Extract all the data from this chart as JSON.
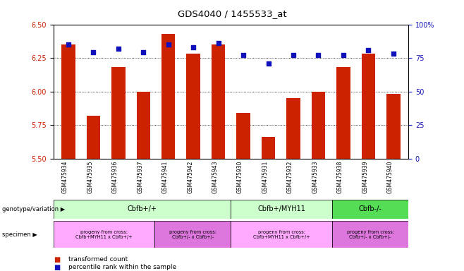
{
  "title": "GDS4040 / 1455533_at",
  "samples": [
    "GSM475934",
    "GSM475935",
    "GSM475936",
    "GSM475937",
    "GSM475941",
    "GSM475942",
    "GSM475943",
    "GSM475930",
    "GSM475931",
    "GSM475932",
    "GSM475933",
    "GSM475938",
    "GSM475939",
    "GSM475940"
  ],
  "transformed_count": [
    6.35,
    5.82,
    6.18,
    6.0,
    6.43,
    6.28,
    6.35,
    5.84,
    5.66,
    5.95,
    6.0,
    6.18,
    6.28,
    5.98
  ],
  "percentile_rank": [
    85,
    79,
    82,
    79,
    85,
    83,
    86,
    77,
    71,
    77,
    77,
    77,
    81,
    78
  ],
  "ylim_left": [
    5.5,
    6.5
  ],
  "ylim_right": [
    0,
    100
  ],
  "yticks_left": [
    5.5,
    5.75,
    6.0,
    6.25,
    6.5
  ],
  "yticks_right": [
    0,
    25,
    50,
    75,
    100
  ],
  "bar_color": "#CC2200",
  "dot_color": "#1111BB",
  "background_color": "#FFFFFF",
  "geno_groups": [
    {
      "label": "Cbfb+/+",
      "start": 0,
      "end": 7,
      "color": "#CCFFCC"
    },
    {
      "label": "Cbfb+/MYH11",
      "start": 7,
      "end": 11,
      "color": "#CCFFCC"
    },
    {
      "label": "Cbfb-/-",
      "start": 11,
      "end": 14,
      "color": "#55DD55"
    }
  ],
  "spec_groups": [
    {
      "label": "progeny from cross:\nCbfb+MYH11 x Cbfb+/+",
      "start": 0,
      "end": 4,
      "color": "#FFAAFF"
    },
    {
      "label": "progeny from cross:\nCbfb+/- x Cbfb+/-",
      "start": 4,
      "end": 7,
      "color": "#DD77DD"
    },
    {
      "label": "progeny from cross:\nCbfb+MYH11 x Cbfb+/+",
      "start": 7,
      "end": 11,
      "color": "#FFAAFF"
    },
    {
      "label": "progeny from cross:\nCbfb+/- x Cbfb+/-",
      "start": 11,
      "end": 14,
      "color": "#DD77DD"
    }
  ],
  "legend_items": [
    {
      "label": "transformed count",
      "color": "#CC2200"
    },
    {
      "label": "percentile rank within the sample",
      "color": "#1111BB"
    }
  ]
}
